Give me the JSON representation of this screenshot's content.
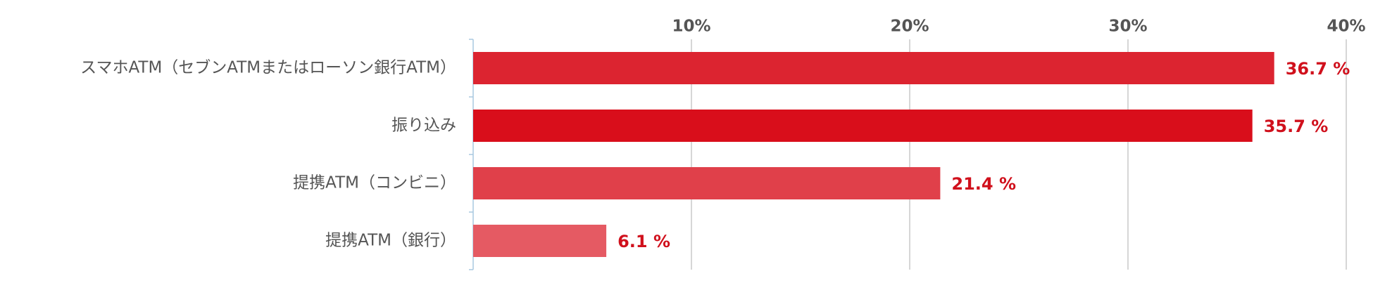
{
  "chart_data": {
    "type": "hbar",
    "categories": [
      "スマホATM（セブンATMまたはローソン銀行ATM）",
      "振り込み",
      "提携ATM（コンビニ）",
      "提携ATM（銀行）"
    ],
    "values": [
      36.7,
      35.7,
      21.4,
      6.1
    ],
    "value_labels": [
      "36.7 %",
      "35.7 %",
      "21.4 %",
      "6.1 %"
    ],
    "colors": [
      "#dc2430",
      "#d90e1b",
      "#e0404a",
      "#e55a63"
    ],
    "xlim": [
      0,
      40
    ],
    "xticks": [
      {
        "value": 10,
        "label": "10%"
      },
      {
        "value": 20,
        "label": "20%"
      },
      {
        "value": 30,
        "label": "30%"
      },
      {
        "value": 40,
        "label": "40%"
      }
    ],
    "grid": true
  }
}
